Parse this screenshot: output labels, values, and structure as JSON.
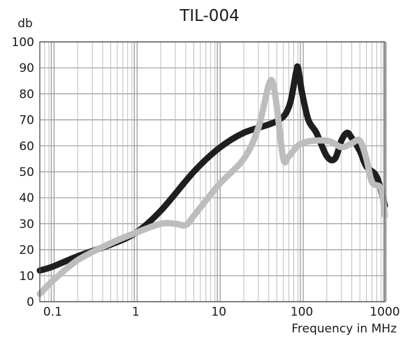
{
  "chart_data": {
    "type": "line",
    "title": "TIL-004",
    "ylabel": "db",
    "xlabel": "Frequency in MHz",
    "xscale": "log",
    "xlim": [
      0.07,
      1000
    ],
    "ylim": [
      0,
      100
    ],
    "grid": true,
    "yticks": [
      "0",
      "10",
      "20",
      "30",
      "40",
      "50",
      "60",
      "70",
      "80",
      "90",
      "100"
    ],
    "xticks": [
      {
        "value": 0.1,
        "label": "0.1"
      },
      {
        "value": 1,
        "label": "1"
      },
      {
        "value": 10,
        "label": "10"
      },
      {
        "value": 100,
        "label": "100"
      },
      {
        "value": 1000,
        "label": "1000"
      }
    ],
    "series": [
      {
        "color": "#1e1e1e",
        "points": [
          [
            0.07,
            12
          ],
          [
            0.1,
            13.5
          ],
          [
            0.2,
            17.5
          ],
          [
            0.5,
            22
          ],
          [
            1,
            26.5
          ],
          [
            2,
            35
          ],
          [
            5,
            50
          ],
          [
            10,
            59
          ],
          [
            20,
            65
          ],
          [
            50,
            69.5
          ],
          [
            70,
            75
          ],
          [
            85,
            88
          ],
          [
            90,
            90
          ],
          [
            100,
            81
          ],
          [
            120,
            70
          ],
          [
            150,
            65
          ],
          [
            200,
            56
          ],
          [
            250,
            55
          ],
          [
            300,
            62
          ],
          [
            350,
            65
          ],
          [
            400,
            63
          ],
          [
            500,
            58
          ],
          [
            600,
            52
          ],
          [
            800,
            48
          ],
          [
            1000,
            37
          ]
        ]
      },
      {
        "color": "#bdbdbd",
        "points": [
          [
            0.07,
            3
          ],
          [
            0.1,
            8
          ],
          [
            0.2,
            16
          ],
          [
            0.5,
            22.5
          ],
          [
            1,
            26.5
          ],
          [
            2,
            30
          ],
          [
            3,
            30
          ],
          [
            4,
            29.5
          ],
          [
            5,
            33
          ],
          [
            10,
            45
          ],
          [
            20,
            55
          ],
          [
            30,
            67
          ],
          [
            40,
            83.5
          ],
          [
            45,
            84
          ],
          [
            50,
            75
          ],
          [
            60,
            55
          ],
          [
            70,
            56
          ],
          [
            100,
            61
          ],
          [
            200,
            62
          ],
          [
            300,
            59.5
          ],
          [
            400,
            61
          ],
          [
            500,
            62
          ],
          [
            600,
            55
          ],
          [
            700,
            46
          ],
          [
            900,
            43.5
          ],
          [
            1000,
            33
          ]
        ]
      }
    ]
  }
}
